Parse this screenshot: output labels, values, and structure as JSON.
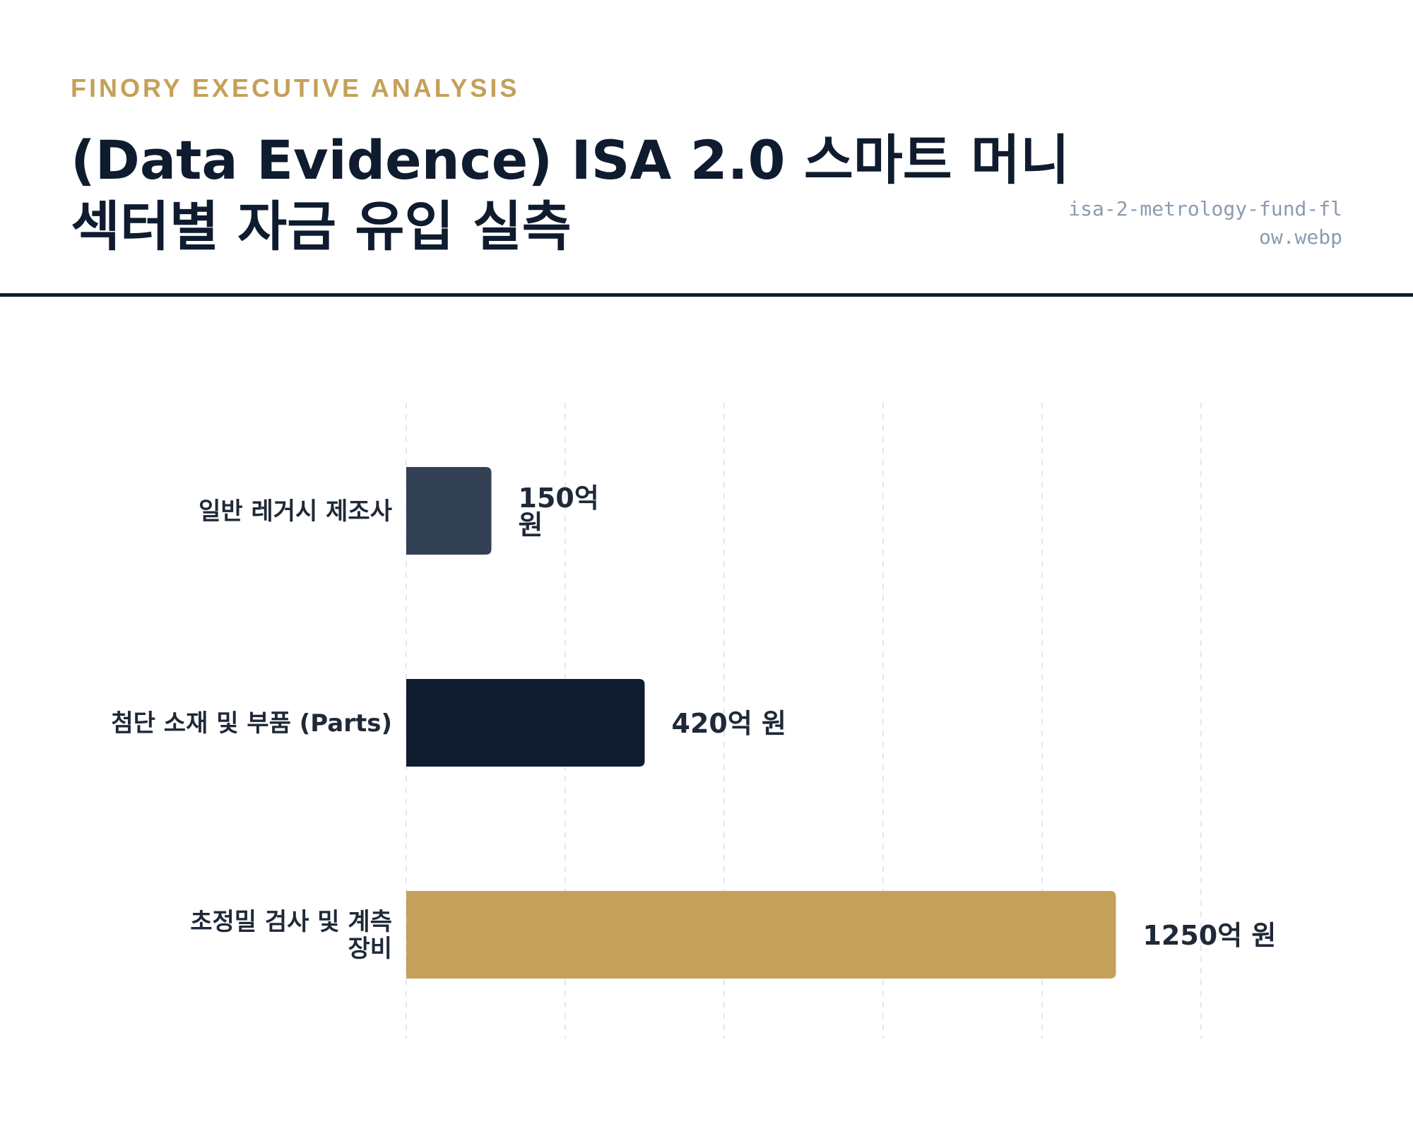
{
  "header": {
    "eyebrow": "FINORY EXECUTIVE ANALYSIS",
    "title": "(Data Evidence) ISA 2.0 스마트 머니 섹터별 자금 유입 실측",
    "filename": "isa-2-metrology-fund-flow.webp"
  },
  "colors": {
    "accent": "#c5a059",
    "navy": "#0f1b2e",
    "slate": "#334155",
    "grid": "#e5e7eb"
  },
  "chart_data": {
    "type": "bar",
    "orientation": "horizontal",
    "categories": [
      "일반 레거시 제조사",
      "첨단 소재 및 부품 (Parts)",
      "초정밀 검사 및 계측 장비"
    ],
    "category_lines": [
      [
        "일반 레거시 제조사"
      ],
      [
        "첨단 소재 및 부품 (Parts)"
      ],
      [
        "초정밀 검사 및 계측",
        "장비"
      ]
    ],
    "values": [
      150,
      420,
      1250
    ],
    "value_labels": [
      "150억 원",
      "420억 원",
      "1250억 원"
    ],
    "value_label_lines": [
      [
        "150억",
        "원"
      ],
      [
        "420억 원"
      ],
      [
        "1250억 원"
      ]
    ],
    "bar_colors": [
      "#334155",
      "#0f1b2e",
      "#c5a059"
    ],
    "xlim": [
      0,
      1400
    ],
    "grid": "vertical dashed",
    "xlabel": "",
    "ylabel": ""
  }
}
